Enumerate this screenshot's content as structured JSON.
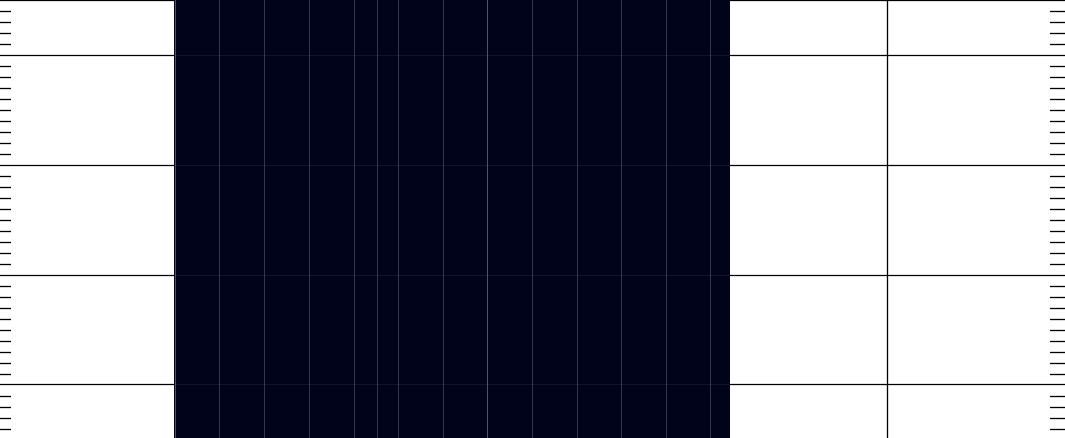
{
  "colors": {
    "background": "#ffffff",
    "panel": "#00031a",
    "panel_stripe": "#5c607a",
    "rule": "#000000",
    "tick": "#000000"
  },
  "labels": {}
}
